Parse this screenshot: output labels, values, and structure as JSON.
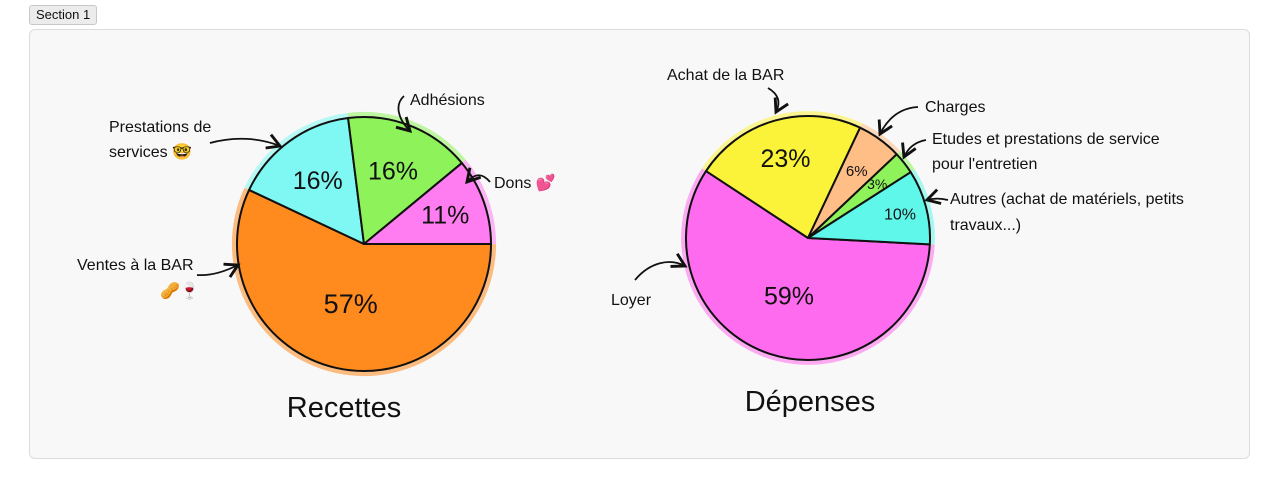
{
  "section": {
    "label": "Section 1"
  },
  "chart_data": [
    {
      "type": "pie",
      "title": "Recettes",
      "slices": [
        {
          "label": "Ventes à la BAR 🥜🍷",
          "value": 57,
          "value_label": "57%",
          "color": "#ff8a1e"
        },
        {
          "label": "Prestations de services 🤓",
          "value": 16,
          "value_label": "16%",
          "color": "#7ff7f2"
        },
        {
          "label": "Adhésions",
          "value": 16,
          "value_label": "16%",
          "color": "#8ef25a"
        },
        {
          "label": "Dons 💕",
          "value": 11,
          "value_label": "11%",
          "color": "#ff7df0"
        }
      ]
    },
    {
      "type": "pie",
      "title": "Dépenses",
      "slices": [
        {
          "label": "Loyer",
          "value": 59,
          "value_label": "59%",
          "color": "#ff6bee"
        },
        {
          "label": "Achat de la BAR",
          "value": 23,
          "value_label": "23%",
          "color": "#fbf33a"
        },
        {
          "label": "Charges",
          "value": 6,
          "value_label": "6%",
          "color": "#ffbe86"
        },
        {
          "label": "Etudes et prestations de service pour l'entretien",
          "value": 3,
          "value_label": "3%",
          "color": "#8ef25a"
        },
        {
          "label": "Autres (achat de matériels, petits travaux...)",
          "value": 10,
          "value_label": "10%",
          "color": "#5ef7ea"
        }
      ]
    }
  ],
  "annotations": {
    "recettes": {
      "prestations_line1": "Prestations de",
      "prestations_line2": "services 🤓",
      "adhesions": "Adhésions",
      "dons": "Dons 💕",
      "ventes_line1": "Ventes à la BAR",
      "ventes_line2": "🥜🍷"
    },
    "depenses": {
      "achat": "Achat de la BAR",
      "charges": "Charges",
      "etudes_line1": "Etudes et prestations de service",
      "etudes_line2": "pour l'entretien",
      "autres_line1": "Autres (achat de matériels, petits",
      "autres_line2": "travaux...)",
      "loyer": "Loyer"
    }
  }
}
